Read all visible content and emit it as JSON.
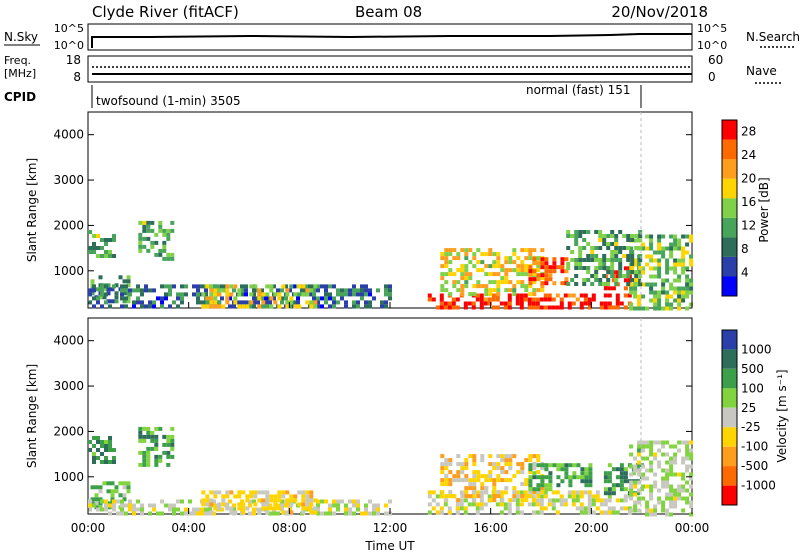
{
  "header": {
    "station": "Clyde River (fitACF)",
    "beam": "Beam 08",
    "date": "20/Nov/2018"
  },
  "status_panels": {
    "nsky_label": "N.Sky",
    "nsky_ticks": [
      "10^5",
      "10^0"
    ],
    "nsearch_label": "N.Search",
    "freq_label_line1": "Freq.",
    "freq_label_line2": "[MHz]",
    "freq_ticks": [
      "18",
      "8"
    ],
    "nave_label": "Nave",
    "nave_ticks": [
      "60",
      "0"
    ],
    "cpid_label": "CPID",
    "cpid_1": "twofsound (1-min) 3505",
    "cpid_2": "normal (fast) 151"
  },
  "colors": {
    "power": [
      "#0000ff",
      "#2a3fa8",
      "#2d6e5a",
      "#48a35b",
      "#7fd14a",
      "#ffd400",
      "#ff9d1c",
      "#ff6a00",
      "#ff0000"
    ],
    "velocity": [
      "#2a3fa8",
      "#2d6e5a",
      "#3ca04a",
      "#82d43e",
      "#c8c8c0",
      "#ffd400",
      "#ff9d1c",
      "#ff6a00",
      "#ff0000"
    ]
  },
  "chart_data": [
    {
      "type": "heatmap",
      "title": "",
      "xlabel": "Time UT",
      "ylabel": "Slant Range [km]",
      "x_ticks": [
        "00:00",
        "04:00",
        "08:00",
        "12:00",
        "16:00",
        "20:00",
        "00:00"
      ],
      "xlim_hours": [
        0,
        24
      ],
      "ylim_km": [
        180,
        4500
      ],
      "y_ticks": [
        1000,
        2000,
        3000,
        4000
      ],
      "colorbar": {
        "label": "Power [dB]",
        "ticks": [
          4,
          8,
          12,
          16,
          20,
          24,
          28
        ],
        "range": [
          0,
          30
        ]
      },
      "regions": [
        {
          "t0": 0.0,
          "t1": 1.0,
          "r0": 1300,
          "r1": 1900,
          "value": 12
        },
        {
          "t0": 0.1,
          "t1": 1.6,
          "r0": 350,
          "r1": 900,
          "value": 10
        },
        {
          "t0": 2.0,
          "t1": 3.3,
          "r0": 1300,
          "r1": 2100,
          "value": 12
        },
        {
          "t0": 0.0,
          "t1": 12.0,
          "r0": 180,
          "r1": 700,
          "value": 8
        },
        {
          "t0": 4.5,
          "t1": 9.0,
          "r0": 250,
          "r1": 700,
          "value": 18
        },
        {
          "t0": 13.5,
          "t1": 21.5,
          "r0": 200,
          "r1": 500,
          "value": 28
        },
        {
          "t0": 14.0,
          "t1": 18.0,
          "r0": 500,
          "r1": 1500,
          "value": 18
        },
        {
          "t0": 17.5,
          "t1": 19.0,
          "r0": 700,
          "r1": 1300,
          "value": 26
        },
        {
          "t0": 20.5,
          "t1": 21.5,
          "r0": 600,
          "r1": 1100,
          "value": 28
        },
        {
          "t0": 21.5,
          "t1": 24.0,
          "r0": 200,
          "r1": 1800,
          "value": 14
        },
        {
          "t0": 19.0,
          "t1": 22.0,
          "r0": 700,
          "r1": 1900,
          "value": 12
        }
      ]
    },
    {
      "type": "heatmap",
      "title": "",
      "xlabel": "Time UT",
      "ylabel": "Slant Range [km]",
      "x_ticks": [
        "00:00",
        "04:00",
        "08:00",
        "12:00",
        "16:00",
        "20:00",
        "00:00"
      ],
      "xlim_hours": [
        0,
        24
      ],
      "ylim_km": [
        180,
        4500
      ],
      "y_ticks": [
        1000,
        2000,
        3000,
        4000
      ],
      "colorbar": {
        "label": "Velocity [m s⁻¹]",
        "ticks": [
          "1000",
          "500",
          "100",
          "25",
          "-25",
          "-100",
          "-500",
          "-1000"
        ],
        "range": [
          -1000,
          1000
        ]
      },
      "regions": [
        {
          "t0": 0.0,
          "t1": 1.0,
          "r0": 1300,
          "r1": 1900,
          "value": 500
        },
        {
          "t0": 0.1,
          "t1": 1.6,
          "r0": 350,
          "r1": 900,
          "value": 300
        },
        {
          "t0": 2.0,
          "t1": 3.3,
          "r0": 1300,
          "r1": 2100,
          "value": 400
        },
        {
          "t0": 0.0,
          "t1": 12.0,
          "r0": 180,
          "r1": 500,
          "value": 0
        },
        {
          "t0": 4.5,
          "t1": 9.0,
          "r0": 250,
          "r1": 700,
          "value": -150
        },
        {
          "t0": 13.5,
          "t1": 21.5,
          "r0": 200,
          "r1": 700,
          "value": 0
        },
        {
          "t0": 14.0,
          "t1": 18.0,
          "r0": 500,
          "r1": 1500,
          "value": -200
        },
        {
          "t0": 17.5,
          "t1": 20.0,
          "r0": 700,
          "r1": 1300,
          "value": 400
        },
        {
          "t0": 20.5,
          "t1": 22.0,
          "r0": 600,
          "r1": 1300,
          "value": 500
        },
        {
          "t0": 21.5,
          "t1": 24.0,
          "r0": 200,
          "r1": 1800,
          "value": 100
        }
      ]
    }
  ]
}
